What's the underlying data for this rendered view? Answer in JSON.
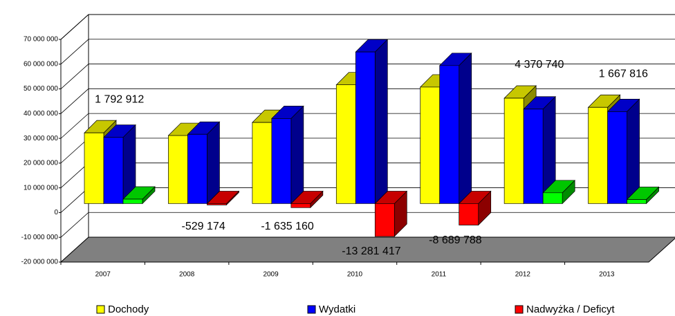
{
  "chart_data": {
    "type": "bar3d",
    "categories": [
      "2007",
      "2008",
      "2009",
      "2010",
      "2011",
      "2012",
      "2013"
    ],
    "series": [
      {
        "name": "Dochody",
        "color": "#ffff00",
        "values": [
          28600000,
          27500000,
          32800000,
          48000000,
          47100000,
          42600000,
          38900000
        ]
      },
      {
        "name": "Wydatki",
        "color": "#0000ff",
        "values": [
          26800000,
          28000000,
          34400000,
          61300000,
          55800000,
          38200000,
          37200000
        ]
      },
      {
        "name": "Nadwyżka / Deficyt",
        "color": "#ff0000",
        "positive_color": "#00ff00",
        "values": [
          1792912,
          -529174,
          -1635160,
          -13281417,
          -8689788,
          4370740,
          1667816
        ],
        "value_labels": [
          "1 792 912",
          "-529 174",
          "-1 635 160",
          "-13 281 417",
          "-8 689 788",
          "4 370 740",
          "1 667 816"
        ]
      }
    ],
    "ylim": [
      -20000000,
      70000000
    ],
    "yticks": [
      {
        "value": -20000000,
        "label": "-20 000 000"
      },
      {
        "value": -10000000,
        "label": "-10 000 000"
      },
      0,
      {
        "value": 10000000,
        "label": "10 000 000"
      },
      {
        "value": 20000000,
        "label": "20 000 000"
      },
      {
        "value": 30000000,
        "label": "30 000 000"
      },
      {
        "value": 40000000,
        "label": "40 000 000"
      },
      {
        "value": 50000000,
        "label": "50 000 000"
      },
      {
        "value": 60000000,
        "label": "60 000 000"
      },
      {
        "value": 70000000,
        "label": "70 000 000"
      }
    ],
    "grid": true,
    "legend": "bottom"
  }
}
